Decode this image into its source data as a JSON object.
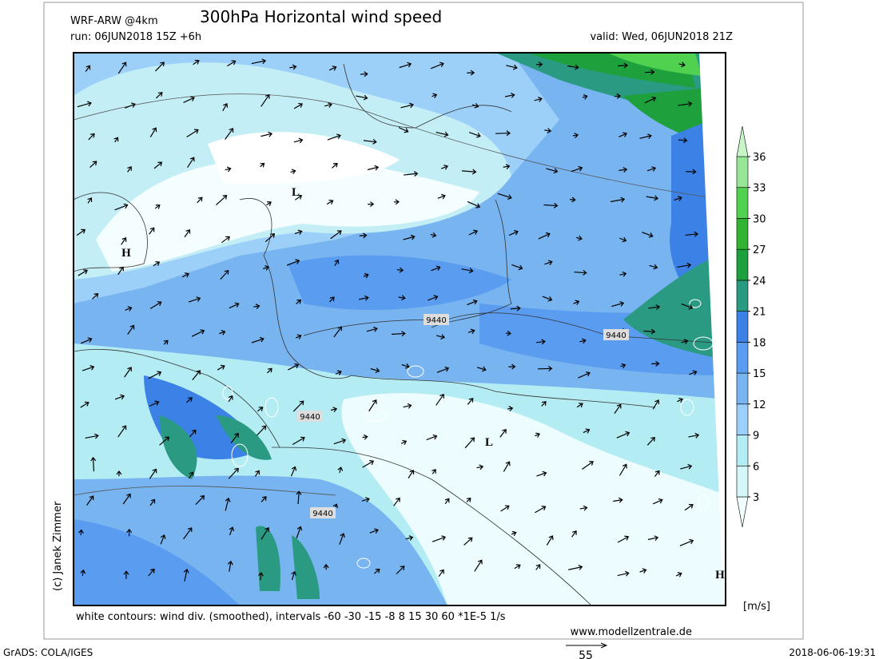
{
  "header": {
    "model": "WRF-ARW @4km",
    "title": "300hPa Horizontal wind speed",
    "run": "run: 06JUN2018 15Z +6h",
    "valid": "valid: Wed, 06JUN2018 21Z"
  },
  "map": {
    "pressure_labels": [
      "L",
      "H",
      "L",
      "H"
    ],
    "contour_labels": [
      "9440",
      "9440",
      "9440",
      "9440"
    ]
  },
  "colorbar": {
    "unit": "[m/s]",
    "ticks": [
      3,
      6,
      9,
      12,
      15,
      18,
      21,
      24,
      27,
      30,
      33,
      36
    ],
    "colors": [
      "#f2ffff",
      "#d4f8fa",
      "#b4ecf4",
      "#9cd0f8",
      "#78b4f0",
      "#5a9cf0",
      "#3c82e6",
      "#2a9a82",
      "#1ea03c",
      "#32b432",
      "#50d250",
      "#96e696",
      "#c8f5c8"
    ]
  },
  "footer": {
    "copyright": "(c) Janek Zimmer",
    "note": "white contours: wind div. (smoothed), intervals -60 -30 -15 -8 8 15 30 60 *1E-5 1/s",
    "website": "www.modellzentrale.de",
    "software": "GrADS: COLA/IGES",
    "timestamp": "2018-06-06-19:31",
    "reference_arrow": "55"
  }
}
